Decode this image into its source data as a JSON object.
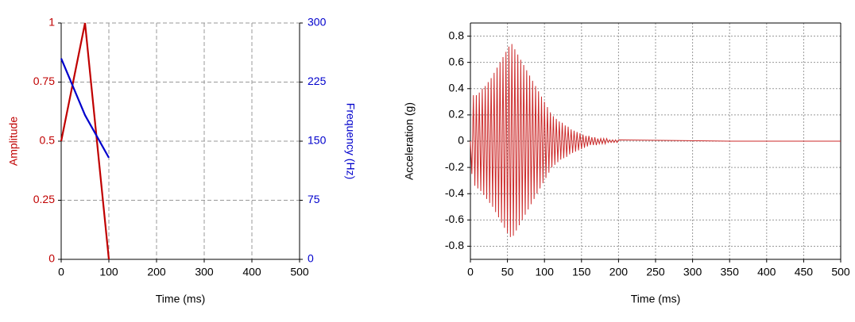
{
  "chart_data": [
    {
      "type": "line",
      "xlabel": "Time (ms)",
      "ylabel": "Amplitude",
      "y2label": "Frequency (Hz)",
      "x": [
        0,
        50,
        100
      ],
      "series": [
        {
          "name": "Amplitude",
          "color": "#c00000",
          "values": [
            0.5,
            1,
            0
          ]
        },
        {
          "name": "Frequency",
          "color": "#0000cc",
          "axis": "y2",
          "values": [
            255,
            183,
            129
          ]
        }
      ],
      "xlim": [
        0,
        500
      ],
      "xticks": [
        0,
        100,
        200,
        300,
        400,
        500
      ],
      "ylim": [
        0,
        1
      ],
      "yticks": [
        0,
        0.25,
        0.5,
        0.75,
        1
      ],
      "y2lim": [
        0,
        300
      ],
      "y2ticks": [
        0,
        75,
        150,
        225,
        300
      ],
      "grid": true,
      "grid_style": "dashed"
    },
    {
      "type": "line",
      "xlabel": "Time (ms)",
      "ylabel": "Acceleration (g)",
      "x": [
        0,
        2,
        4,
        6,
        8,
        10,
        12,
        14,
        16,
        18,
        20,
        22,
        24,
        26,
        28,
        30,
        32,
        34,
        36,
        38,
        40,
        42,
        44,
        46,
        48,
        50,
        52,
        54,
        56,
        58,
        60,
        62,
        64,
        66,
        68,
        70,
        72,
        74,
        76,
        78,
        80,
        82,
        84,
        86,
        88,
        90,
        92,
        94,
        96,
        98,
        100,
        102,
        104,
        106,
        108,
        110,
        112,
        114,
        116,
        118,
        120,
        122,
        124,
        126,
        128,
        130,
        132,
        134,
        136,
        138,
        140,
        142,
        144,
        146,
        148,
        150,
        152,
        154,
        156,
        158,
        160,
        162,
        164,
        166,
        168,
        170,
        172,
        174,
        176,
        178,
        180,
        182,
        184,
        186,
        188,
        190,
        192,
        194,
        196,
        198,
        200,
        350,
        500
      ],
      "series": [
        {
          "name": "Acceleration",
          "color": "#cc2a2a",
          "values": [
            0,
            -0.25,
            0.35,
            -0.34,
            0.35,
            -0.36,
            0.37,
            -0.38,
            0.4,
            -0.41,
            0.42,
            -0.44,
            0.45,
            -0.47,
            0.48,
            -0.5,
            0.52,
            -0.54,
            0.56,
            -0.58,
            0.6,
            -0.62,
            0.64,
            -0.66,
            0.68,
            -0.7,
            0.72,
            -0.73,
            0.74,
            -0.72,
            0.7,
            -0.68,
            0.66,
            -0.64,
            0.62,
            -0.6,
            0.58,
            -0.56,
            0.54,
            -0.52,
            0.5,
            -0.48,
            0.46,
            -0.44,
            0.42,
            -0.4,
            0.38,
            -0.36,
            0.34,
            -0.32,
            0.3,
            -0.28,
            0.26,
            -0.24,
            0.22,
            -0.2,
            0.19,
            -0.18,
            0.17,
            -0.16,
            0.15,
            -0.14,
            0.14,
            -0.13,
            0.12,
            -0.12,
            0.11,
            -0.1,
            0.09,
            -0.09,
            0.08,
            -0.08,
            0.07,
            -0.07,
            0.06,
            -0.06,
            0.05,
            -0.05,
            0.04,
            -0.04,
            0.04,
            -0.03,
            0.03,
            -0.03,
            0.03,
            -0.03,
            0.02,
            -0.02,
            0.02,
            -0.02,
            0.02,
            -0.02,
            0.02,
            -0.01,
            0.01,
            -0.01,
            0.01,
            -0.01,
            0.01,
            -0.01,
            0.01,
            0,
            0
          ]
        }
      ],
      "xlim": [
        0,
        500
      ],
      "xticks": [
        0,
        50,
        100,
        150,
        200,
        250,
        300,
        350,
        400,
        450,
        500
      ],
      "ylim": [
        -0.9,
        0.9
      ],
      "yticks": [
        -0.8,
        -0.6,
        -0.4,
        -0.2,
        0,
        0.2,
        0.4,
        0.6,
        0.8
      ],
      "grid": true,
      "grid_style": "dotted"
    }
  ]
}
